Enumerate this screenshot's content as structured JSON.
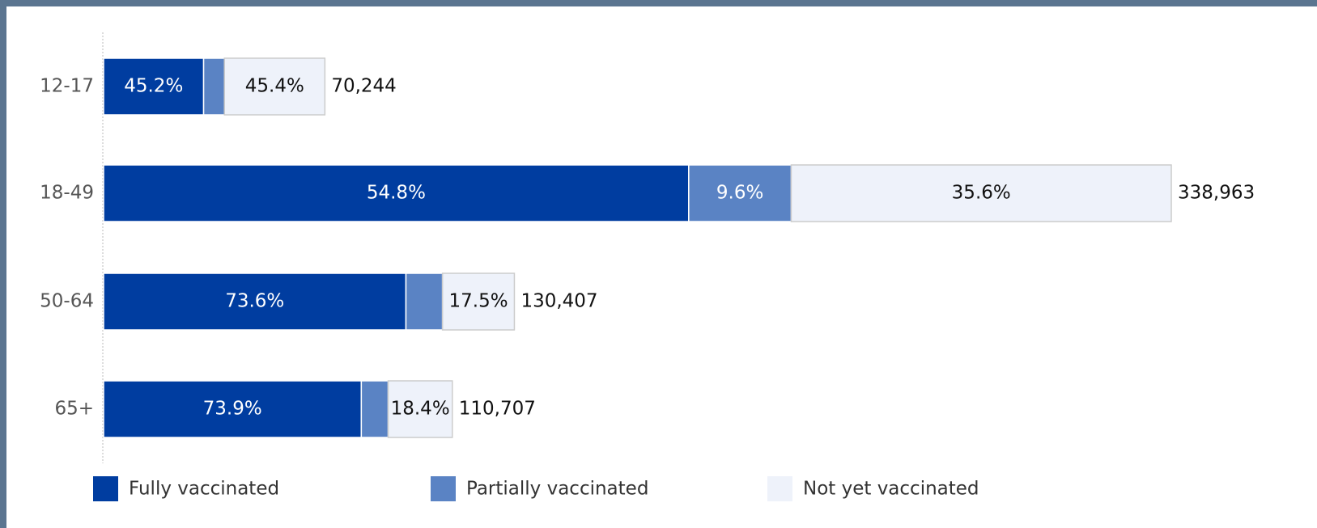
{
  "chart_data": {
    "type": "stacked-bar",
    "orientation": "horizontal",
    "categories": [
      "12-17",
      "18-49",
      "50-64",
      "65+"
    ],
    "series": [
      {
        "name": "Fully vaccinated",
        "color": "#003da0",
        "values": [
          45.2,
          54.8,
          73.6,
          73.9
        ],
        "value_labels": [
          "45.2%",
          "54.8%",
          "73.6%",
          "73.9%"
        ]
      },
      {
        "name": "Partially vaccinated",
        "color": "#5a83c4",
        "values": [
          9.4,
          9.6,
          8.9,
          7.7
        ],
        "value_labels": [
          null,
          "9.6%",
          null,
          null
        ]
      },
      {
        "name": "Not yet vaccinated",
        "color": "#eef2fa",
        "values": [
          45.4,
          35.6,
          17.5,
          18.4
        ],
        "value_labels": [
          "45.4%",
          "35.6%",
          "17.5%",
          "18.4%"
        ]
      }
    ],
    "totals": {
      "values": [
        70244,
        338963,
        130407,
        110707
      ],
      "value_labels": [
        "70,244",
        "338,963",
        "130,407",
        "110,707"
      ]
    }
  }
}
